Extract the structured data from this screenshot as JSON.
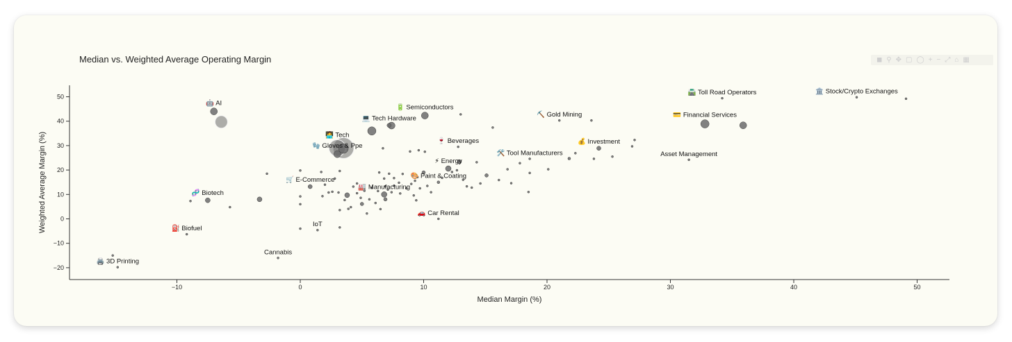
{
  "modebar_icons": [
    "camera-icon",
    "zoom-icon",
    "pan-icon",
    "box-select-icon",
    "lasso-icon",
    "zoom-in-icon",
    "zoom-out-icon",
    "autoscale-icon",
    "reset-icon",
    "plotly-logo-icon"
  ],
  "colors": {
    "card_bg": "#fcfcf4",
    "marker": "#6b6b6b",
    "marker_edge": "#3a3a3a",
    "axis": "#333333"
  },
  "chart_data": {
    "type": "scatter",
    "title": "Median vs. Weighted Average Operating Margin",
    "xlabel": "Median Margin (%)",
    "ylabel": "Weighted Average Margin (%)",
    "xlim": [
      -18.5,
      53
    ],
    "ylim": [
      -25,
      54
    ],
    "xticks": [
      -10,
      0,
      10,
      20,
      30,
      40,
      50
    ],
    "yticks": [
      -20,
      -10,
      0,
      10,
      20,
      30,
      40,
      50
    ],
    "grid": false,
    "legend": "none",
    "labeled_points": [
      {
        "label": "🤖 AI",
        "x": -7.0,
        "y": 44.0,
        "size": 5
      },
      {
        "label": "",
        "x": -6.4,
        "y": 39.7,
        "size": 9
      },
      {
        "label": "💻 Tech Hardware",
        "x": 7.2,
        "y": 38.3,
        "size": 3
      },
      {
        "label": "🧑‍💻 Tech",
        "x": 3.0,
        "y": 29.0,
        "size": 12
      },
      {
        "label": "",
        "x": 3.5,
        "y": 29.0,
        "size": 15
      },
      {
        "label": "",
        "x": 3.5,
        "y": 28.8,
        "size": 7
      },
      {
        "label": "🔋 Semiconductors",
        "x": 10.1,
        "y": 42.3,
        "size": 5
      },
      {
        "label": "",
        "x": 5.8,
        "y": 36.0,
        "size": 6
      },
      {
        "label": "",
        "x": 7.4,
        "y": 38.2,
        "size": 5
      },
      {
        "label": "🧤 Gloves & Ppe",
        "x": 3.0,
        "y": 26.5,
        "size": 5
      },
      {
        "label": "🍷 Beverages",
        "x": 12.8,
        "y": 29.5,
        "size": 1.5
      },
      {
        "label": "⚡ Energy",
        "x": 12.0,
        "y": 20.6,
        "size": 4
      },
      {
        "label": "",
        "x": 12.9,
        "y": 23.4,
        "size": 3
      },
      {
        "label": "🎨 Paint & Coating",
        "x": 11.2,
        "y": 15.0,
        "size": 2
      },
      {
        "label": "🏭 Manufacturing",
        "x": 6.8,
        "y": 10.0,
        "size": 4
      },
      {
        "label": "",
        "x": 3.8,
        "y": 9.7,
        "size": 3.5
      },
      {
        "label": "🛒 E-Commerce",
        "x": 0.8,
        "y": 13.2,
        "size": 3
      },
      {
        "label": "🧬 Biotech",
        "x": -7.5,
        "y": 7.6,
        "size": 3.5
      },
      {
        "label": "",
        "x": -3.3,
        "y": 8.0,
        "size": 3.5
      },
      {
        "label": "⛏️ Gold Mining",
        "x": 21.0,
        "y": 40.3,
        "size": 1.5
      },
      {
        "label": "🛠️ Tool Manufacturers",
        "x": 18.6,
        "y": 24.6,
        "size": 1.5
      },
      {
        "label": "💰 Investment",
        "x": 24.2,
        "y": 28.9,
        "size": 3
      },
      {
        "label": "🛣️ Toll Road Operators",
        "x": 34.2,
        "y": 49.4,
        "size": 1.5
      },
      {
        "label": "🏛️ Stock/Crypto Exchanges",
        "x": 45.1,
        "y": 49.8,
        "size": 1.5
      },
      {
        "label": "💳 Financial Services",
        "x": 32.8,
        "y": 38.9,
        "size": 6
      },
      {
        "label": "",
        "x": 35.9,
        "y": 38.3,
        "size": 5
      },
      {
        "label": "Asset Management",
        "x": 31.5,
        "y": 24.2,
        "size": 1.5
      },
      {
        "label": "🚗 Car Rental",
        "x": 11.2,
        "y": 0.0,
        "size": 1.5
      },
      {
        "label": "IoT",
        "x": 1.4,
        "y": -4.6,
        "size": 1.5
      },
      {
        "label": "Cannabis",
        "x": -1.8,
        "y": -16.0,
        "size": 1.5
      },
      {
        "label": "⛽ Biofuel",
        "x": -9.2,
        "y": -6.3,
        "size": 1.5
      },
      {
        "label": "🖨️ 3D Printing",
        "x": -14.8,
        "y": -19.8,
        "size": 1.5
      }
    ],
    "points": [
      {
        "x": -15.2,
        "y": -15.0,
        "size": 1.5
      },
      {
        "x": -2.7,
        "y": 18.5,
        "size": 1.5
      },
      {
        "x": -8.9,
        "y": 7.3,
        "size": 1.5
      },
      {
        "x": -5.7,
        "y": 4.8,
        "size": 1.5
      },
      {
        "x": 0.0,
        "y": 19.8,
        "size": 1.5
      },
      {
        "x": 0.0,
        "y": 9.2,
        "size": 1.5
      },
      {
        "x": 0.0,
        "y": 6.0,
        "size": 1.5
      },
      {
        "x": 0.0,
        "y": -4.0,
        "size": 1.5
      },
      {
        "x": 1.7,
        "y": 19.2,
        "size": 1.5
      },
      {
        "x": 2.0,
        "y": 14.0,
        "size": 1.5
      },
      {
        "x": 2.8,
        "y": 16.5,
        "size": 1.5
      },
      {
        "x": 3.2,
        "y": 19.6,
        "size": 1.5
      },
      {
        "x": 2.3,
        "y": 10.8,
        "size": 1.5
      },
      {
        "x": 1.8,
        "y": 9.3,
        "size": 1.5
      },
      {
        "x": 2.6,
        "y": 11.1,
        "size": 1.5
      },
      {
        "x": 3.1,
        "y": 10.8,
        "size": 1.5
      },
      {
        "x": 3.2,
        "y": 3.6,
        "size": 1.5
      },
      {
        "x": 3.2,
        "y": -3.5,
        "size": 1.5
      },
      {
        "x": 3.6,
        "y": 7.7,
        "size": 1.5
      },
      {
        "x": 3.9,
        "y": 4.1,
        "size": 1.5
      },
      {
        "x": 4.1,
        "y": 4.8,
        "size": 1.5
      },
      {
        "x": 4.3,
        "y": 13.2,
        "size": 1.5
      },
      {
        "x": 4.6,
        "y": 10.5,
        "size": 1.5
      },
      {
        "x": 4.6,
        "y": 14.5,
        "size": 1.5
      },
      {
        "x": 4.9,
        "y": 8.6,
        "size": 1.5
      },
      {
        "x": 5.0,
        "y": 6.1,
        "size": 2.5
      },
      {
        "x": 5.2,
        "y": 11.5,
        "size": 1.5
      },
      {
        "x": 5.4,
        "y": 2.2,
        "size": 1.5
      },
      {
        "x": 5.6,
        "y": 8.0,
        "size": 1.5
      },
      {
        "x": 5.8,
        "y": 12.7,
        "size": 1.5
      },
      {
        "x": 6.1,
        "y": 6.5,
        "size": 1.5
      },
      {
        "x": 6.3,
        "y": 11.4,
        "size": 1.5
      },
      {
        "x": 6.4,
        "y": 19.0,
        "size": 1.5
      },
      {
        "x": 6.5,
        "y": 4.0,
        "size": 1.5
      },
      {
        "x": 6.7,
        "y": 28.9,
        "size": 1.5
      },
      {
        "x": 6.8,
        "y": 16.5,
        "size": 1.5
      },
      {
        "x": 6.9,
        "y": 8.0,
        "size": 2.5
      },
      {
        "x": 6.9,
        "y": 13.3,
        "size": 1.5
      },
      {
        "x": 7.1,
        "y": 12.0,
        "size": 1.5
      },
      {
        "x": 7.2,
        "y": 18.5,
        "size": 1.5
      },
      {
        "x": 7.4,
        "y": 10.9,
        "size": 1.5
      },
      {
        "x": 7.6,
        "y": 13.6,
        "size": 1.5
      },
      {
        "x": 7.6,
        "y": 16.7,
        "size": 1.5
      },
      {
        "x": 8.0,
        "y": 14.8,
        "size": 1.5
      },
      {
        "x": 8.1,
        "y": 10.4,
        "size": 1.5
      },
      {
        "x": 8.3,
        "y": 18.4,
        "size": 1.5
      },
      {
        "x": 8.6,
        "y": 12.5,
        "size": 1.5
      },
      {
        "x": 8.9,
        "y": 27.6,
        "size": 1.5
      },
      {
        "x": 9.0,
        "y": 14.3,
        "size": 1.5
      },
      {
        "x": 9.3,
        "y": 15.6,
        "size": 1.5
      },
      {
        "x": 9.2,
        "y": 9.6,
        "size": 1.5
      },
      {
        "x": 9.4,
        "y": 7.6,
        "size": 1.5
      },
      {
        "x": 9.5,
        "y": 17.1,
        "size": 1.5
      },
      {
        "x": 9.6,
        "y": 28.1,
        "size": 1.5
      },
      {
        "x": 9.7,
        "y": 12.5,
        "size": 1.5
      },
      {
        "x": 10.0,
        "y": 19.0,
        "size": 2.5
      },
      {
        "x": 10.1,
        "y": 27.5,
        "size": 1.5
      },
      {
        "x": 10.3,
        "y": 13.5,
        "size": 1.5
      },
      {
        "x": 10.6,
        "y": 10.9,
        "size": 1.5
      },
      {
        "x": 11.5,
        "y": 16.8,
        "size": 1.5
      },
      {
        "x": 12.3,
        "y": 19.2,
        "size": 1.5
      },
      {
        "x": 12.7,
        "y": 19.9,
        "size": 1.5
      },
      {
        "x": 13.0,
        "y": 42.8,
        "size": 1.5
      },
      {
        "x": 13.2,
        "y": 16.0,
        "size": 1.5
      },
      {
        "x": 13.5,
        "y": 13.3,
        "size": 1.5
      },
      {
        "x": 13.9,
        "y": 12.8,
        "size": 1.5
      },
      {
        "x": 14.3,
        "y": 23.2,
        "size": 1.5
      },
      {
        "x": 14.6,
        "y": 14.5,
        "size": 1.5
      },
      {
        "x": 15.1,
        "y": 17.8,
        "size": 2.5
      },
      {
        "x": 15.6,
        "y": 37.4,
        "size": 1.5
      },
      {
        "x": 16.1,
        "y": 15.9,
        "size": 1.5
      },
      {
        "x": 16.8,
        "y": 20.3,
        "size": 1.5
      },
      {
        "x": 17.1,
        "y": 14.6,
        "size": 1.5
      },
      {
        "x": 17.8,
        "y": 22.8,
        "size": 1.5
      },
      {
        "x": 18.5,
        "y": 11.0,
        "size": 1.5
      },
      {
        "x": 18.6,
        "y": 18.8,
        "size": 1.5
      },
      {
        "x": 20.1,
        "y": 20.3,
        "size": 1.5
      },
      {
        "x": 21.8,
        "y": 24.7,
        "size": 2
      },
      {
        "x": 22.3,
        "y": 26.9,
        "size": 1.5
      },
      {
        "x": 23.6,
        "y": 40.3,
        "size": 1.5
      },
      {
        "x": 23.8,
        "y": 24.6,
        "size": 1.5
      },
      {
        "x": 25.3,
        "y": 25.5,
        "size": 1.5
      },
      {
        "x": 26.9,
        "y": 29.7,
        "size": 1.5
      },
      {
        "x": 27.1,
        "y": 32.3,
        "size": 1.5
      },
      {
        "x": 49.1,
        "y": 49.2,
        "size": 1.5
      }
    ]
  }
}
